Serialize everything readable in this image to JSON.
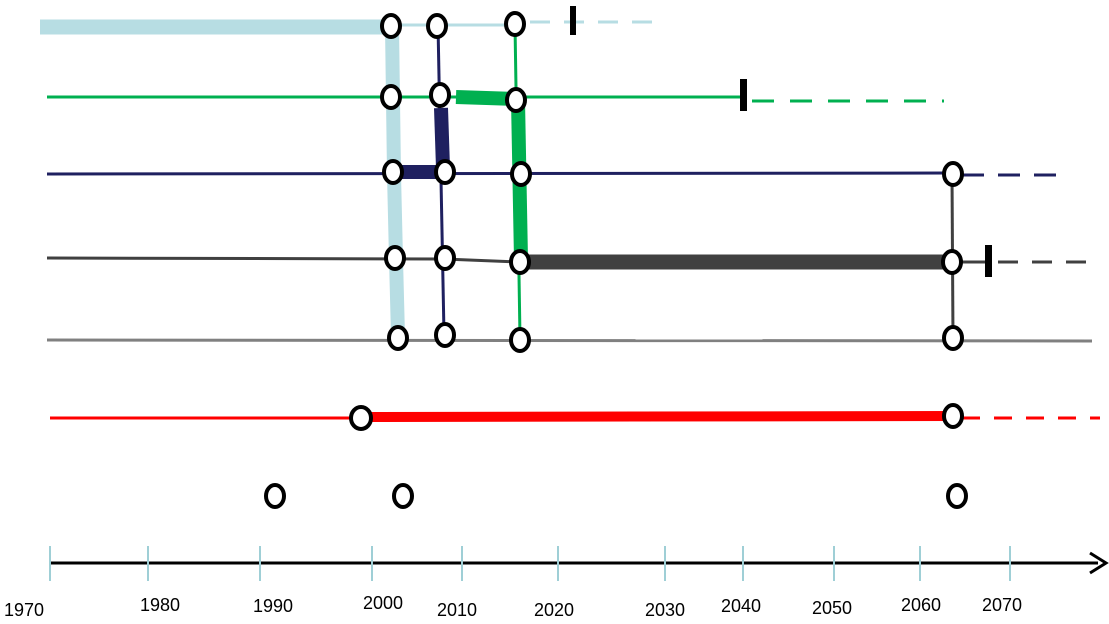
{
  "timeline": {
    "ticks": [
      {
        "year": "1970"
      },
      {
        "year": "1980"
      },
      {
        "year": "1990"
      },
      {
        "year": "2000"
      },
      {
        "year": "2010"
      },
      {
        "year": "2020"
      },
      {
        "year": "2030"
      },
      {
        "year": "2040"
      },
      {
        "year": "2050"
      },
      {
        "year": "2060"
      },
      {
        "year": "2070"
      }
    ]
  },
  "colors": {
    "light_blue": "#b7dde3",
    "green": "#00b050",
    "navy": "#1f2060",
    "dark_gray": "#404040",
    "gray": "#808080",
    "red": "#ff0000",
    "black": "#000000"
  },
  "tracks": [
    {
      "id": "light-blue",
      "color": "light_blue"
    },
    {
      "id": "green",
      "color": "green"
    },
    {
      "id": "navy",
      "color": "navy"
    },
    {
      "id": "dark-gray",
      "color": "dark_gray"
    },
    {
      "id": "gray",
      "color": "gray"
    },
    {
      "id": "red",
      "color": "red"
    }
  ]
}
